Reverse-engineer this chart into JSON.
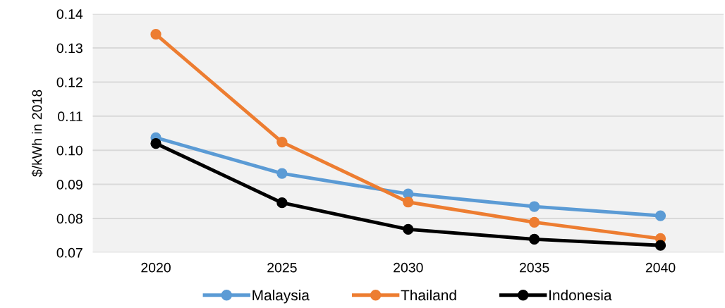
{
  "chart_data": {
    "type": "line",
    "ylabel": "$/kWh in 2018",
    "categories": [
      "2020",
      "2025",
      "2030",
      "2035",
      "2040"
    ],
    "series": [
      {
        "name": "Malaysia",
        "color": "#5b9bd5",
        "values": [
          0.1037,
          0.0932,
          0.0872,
          0.0835,
          0.0808
        ]
      },
      {
        "name": "Thailand",
        "color": "#ed7d31",
        "values": [
          0.134,
          0.1024,
          0.0848,
          0.0789,
          0.0741
        ]
      },
      {
        "name": "Indonesia",
        "color": "#000000",
        "values": [
          0.102,
          0.0846,
          0.0768,
          0.0739,
          0.0721
        ]
      }
    ],
    "ylim": [
      0.07,
      0.14
    ],
    "yticks": [
      {
        "value": 0.07,
        "label": "0.07"
      },
      {
        "value": 0.08,
        "label": "0.08"
      },
      {
        "value": 0.09,
        "label": "0.09"
      },
      {
        "value": 0.1,
        "label": "0.10"
      },
      {
        "value": 0.11,
        "label": "0.11"
      },
      {
        "value": 0.12,
        "label": "0.12"
      },
      {
        "value": 0.13,
        "label": "0.13"
      },
      {
        "value": 0.14,
        "label": "0.14"
      }
    ],
    "grid": "y",
    "legend": "bottom",
    "marker": "circle",
    "line_style": "solid"
  }
}
